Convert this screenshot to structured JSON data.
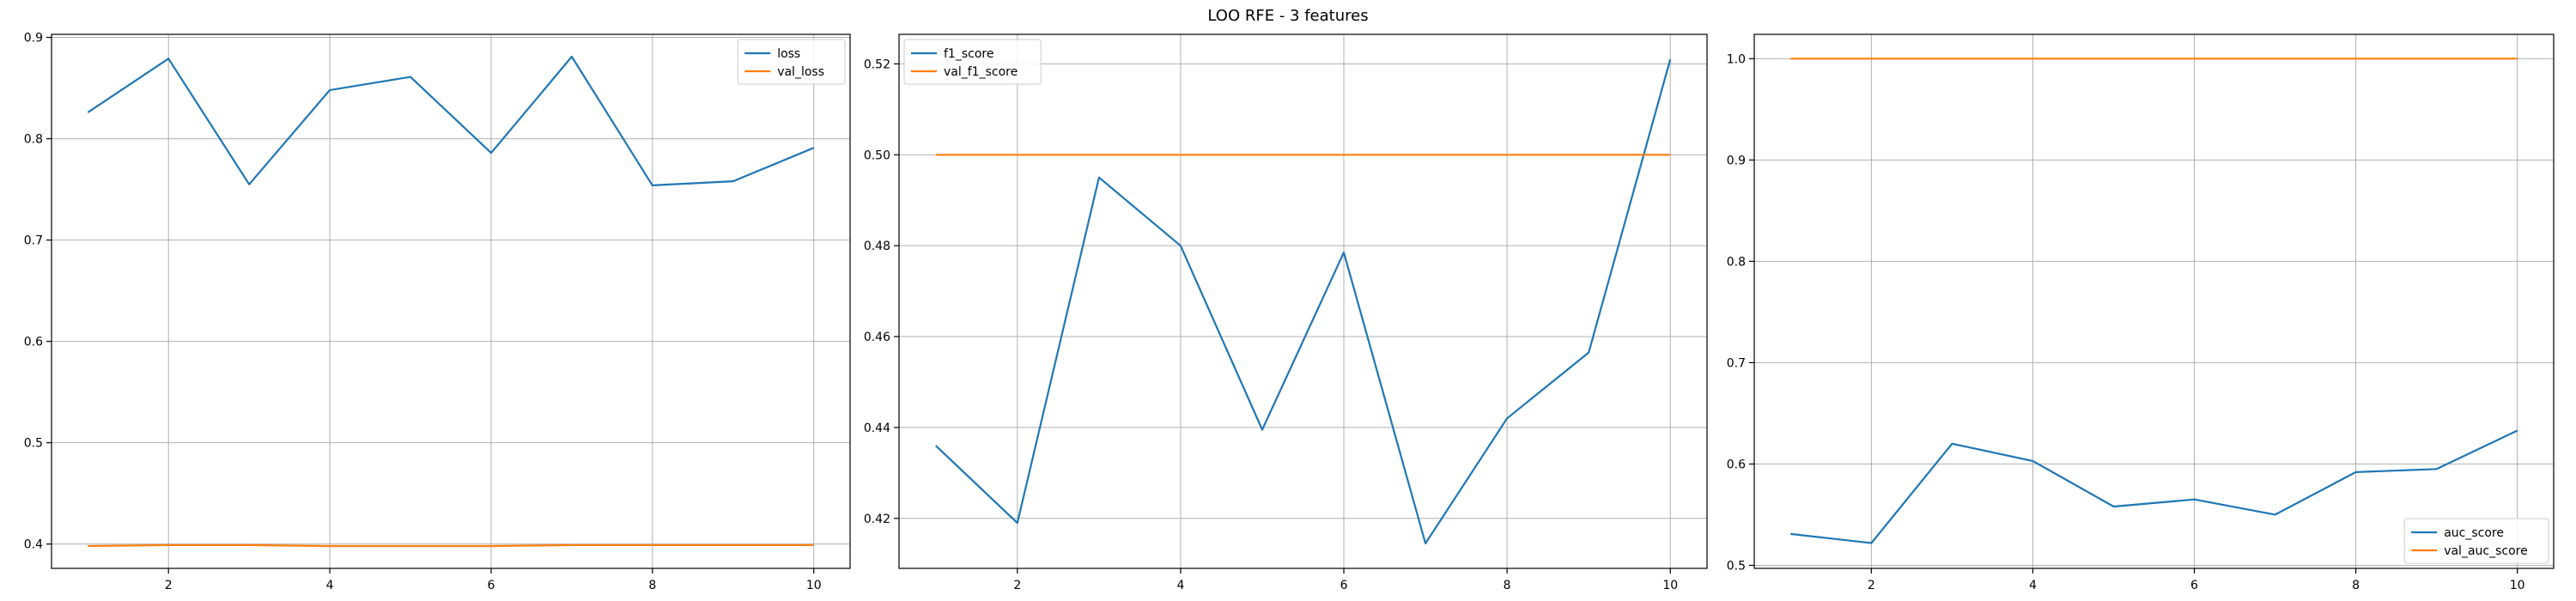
{
  "figure": {
    "title": "LOO RFE - 3 features"
  },
  "colors": {
    "blue": "#1f77b4",
    "orange": "#ff7f0e",
    "grid": "#b0b0b0"
  },
  "chart_data": [
    {
      "type": "line",
      "x": [
        1,
        2,
        3,
        4,
        5,
        6,
        7,
        8,
        9,
        10
      ],
      "series": [
        {
          "name": "loss",
          "values": [
            0.826,
            0.879,
            0.755,
            0.848,
            0.861,
            0.786,
            0.881,
            0.754,
            0.758,
            0.791
          ]
        },
        {
          "name": "val_loss",
          "values": [
            0.398,
            0.399,
            0.399,
            0.398,
            0.398,
            0.398,
            0.399,
            0.399,
            0.399,
            0.399
          ]
        }
      ],
      "xlim": [
        0.55,
        10.45
      ],
      "ylim": [
        0.376,
        0.903
      ],
      "xticks": [
        2,
        4,
        6,
        8,
        10
      ],
      "yticks": [
        0.4,
        0.5,
        0.6,
        0.7,
        0.8,
        0.9
      ],
      "xtick_labels": [
        "2",
        "4",
        "6",
        "8",
        "10"
      ],
      "ytick_labels": [
        "0.4",
        "0.5",
        "0.6",
        "0.7",
        "0.8",
        "0.9"
      ],
      "grid": true,
      "legend": "top-right"
    },
    {
      "type": "line",
      "x": [
        1,
        2,
        3,
        4,
        5,
        6,
        7,
        8,
        9,
        10
      ],
      "series": [
        {
          "name": "f1_score",
          "values": [
            0.436,
            0.419,
            0.495,
            0.48,
            0.4395,
            0.4785,
            0.4145,
            0.442,
            0.4565,
            0.521
          ]
        },
        {
          "name": "val_f1_score",
          "values": [
            0.5,
            0.5,
            0.5,
            0.5,
            0.5,
            0.5,
            0.5,
            0.5,
            0.5,
            0.5
          ]
        }
      ],
      "xlim": [
        0.55,
        10.45
      ],
      "ylim": [
        0.409,
        0.5265
      ],
      "xticks": [
        2,
        4,
        6,
        8,
        10
      ],
      "yticks": [
        0.42,
        0.44,
        0.46,
        0.48,
        0.5,
        0.52
      ],
      "xtick_labels": [
        "2",
        "4",
        "6",
        "8",
        "10"
      ],
      "ytick_labels": [
        "0.42",
        "0.44",
        "0.46",
        "0.48",
        "0.50",
        "0.52"
      ],
      "grid": true,
      "legend": "top-left"
    },
    {
      "type": "line",
      "x": [
        1,
        2,
        3,
        4,
        5,
        6,
        7,
        8,
        9,
        10
      ],
      "series": [
        {
          "name": "auc_score",
          "values": [
            0.531,
            0.522,
            0.62,
            0.603,
            0.558,
            0.565,
            0.55,
            0.592,
            0.595,
            0.633
          ]
        },
        {
          "name": "val_auc_score",
          "values": [
            1.0,
            1.0,
            1.0,
            1.0,
            1.0,
            1.0,
            1.0,
            1.0,
            1.0,
            1.0
          ]
        }
      ],
      "xlim": [
        0.55,
        10.45
      ],
      "ylim": [
        0.497,
        1.024
      ],
      "xticks": [
        2,
        4,
        6,
        8,
        10
      ],
      "yticks": [
        0.5,
        0.6,
        0.7,
        0.8,
        0.9,
        1.0
      ],
      "xtick_labels": [
        "2",
        "4",
        "6",
        "8",
        "10"
      ],
      "ytick_labels": [
        "0.5",
        "0.6",
        "0.7",
        "0.8",
        "0.9",
        "1.0"
      ],
      "grid": true,
      "legend": "bottom-right"
    }
  ]
}
